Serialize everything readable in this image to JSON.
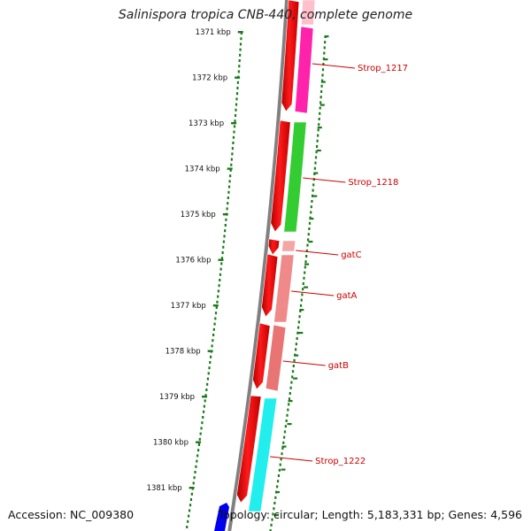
{
  "title": "Salinispora tropica CNB-440, complete genome",
  "ticks": [
    {
      "label": "1371 kbp"
    },
    {
      "label": "1372 kbp"
    },
    {
      "label": "1373 kbp"
    },
    {
      "label": "1374 kbp"
    },
    {
      "label": "1375 kbp"
    },
    {
      "label": "1376 kbp"
    },
    {
      "label": "1377 kbp"
    },
    {
      "label": "1378 kbp"
    },
    {
      "label": "1379 kbp"
    },
    {
      "label": "1380 kbp"
    },
    {
      "label": "1381 kbp"
    }
  ],
  "genes": [
    {
      "name": "Strop_1217",
      "color": "#ff22aa"
    },
    {
      "name": "Strop_1218",
      "color": "#33cc33"
    },
    {
      "name": "gatC",
      "color": "#f4a6a6"
    },
    {
      "name": "gatA",
      "color": "#f08a8a"
    },
    {
      "name": "gatB",
      "color": "#e87474"
    },
    {
      "name": "Strop_1222",
      "color": "#22eeee"
    }
  ],
  "colors": {
    "cds_track": "#ff0000",
    "backbone": "#808080",
    "other_strand_feature": "#0000ee",
    "tick_dots": "#1a7a1a",
    "label_text": "#cc0000"
  },
  "footer": {
    "accession": "Accession: NC_009380",
    "topology": "Topology: circular; Length: 5,183,331 bp; Genes: 4,596"
  }
}
